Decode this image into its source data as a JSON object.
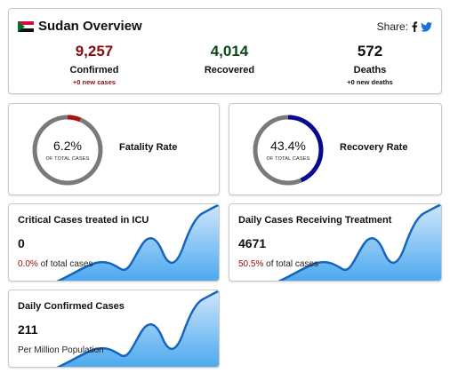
{
  "overview": {
    "title": "Sudan Overview",
    "share_label": "Share:",
    "confirmed": {
      "value": "9,257",
      "label": "Confirmed",
      "sub": "+0 new cases"
    },
    "recovered": {
      "value": "4,014",
      "label": "Recovered"
    },
    "deaths": {
      "value": "572",
      "label": "Deaths",
      "sub": "+0 new deaths"
    }
  },
  "fatality": {
    "percent_text": "6.2%",
    "percent": 6.2,
    "sub": "OF TOTAL CASES",
    "label": "Fatality Rate",
    "color": "#b01010"
  },
  "recovery": {
    "percent_text": "43.4%",
    "percent": 43.4,
    "sub": "OF TOTAL CASES",
    "label": "Recovery Rate",
    "color": "#0a0a8c"
  },
  "icu": {
    "title": "Critical Cases treated in ICU",
    "value": "0",
    "note_pct": "0.0%",
    "note_text": " of total cases"
  },
  "treatment": {
    "title": "Daily Cases Receiving Treatment",
    "value": "4671",
    "note_pct": "50.5%",
    "note_text": " of total cases"
  },
  "daily": {
    "title": "Daily Confirmed Cases",
    "value": "211",
    "note_text": "Per Million Population"
  },
  "colors": {
    "ring_track": "#7a7a7a",
    "trend_line": "#1565c0",
    "trend_fill_top": "#cfe6fb",
    "trend_fill_bottom": "#4aa8ee"
  }
}
